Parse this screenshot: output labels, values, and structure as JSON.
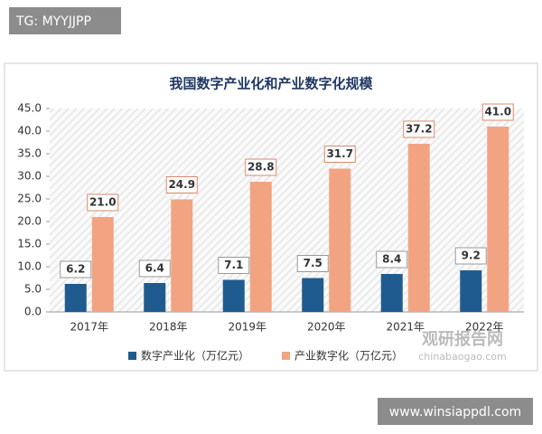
{
  "chart_data": {
    "type": "bar",
    "title": "我国数字产业化和产业数字化规模",
    "categories": [
      "2017年",
      "2018年",
      "2019年",
      "2020年",
      "2021年",
      "2022年"
    ],
    "series": [
      {
        "name": "数字产业化（万亿元）",
        "color": "#1f5b8e",
        "values": [
          6.2,
          6.4,
          7.1,
          7.5,
          8.4,
          9.2
        ],
        "value_labels": [
          "6.2",
          "6.4",
          "7.1",
          "7.5",
          "8.4",
          "9.2"
        ]
      },
      {
        "name": "产业数字化（万亿元）",
        "color": "#f2a482",
        "values": [
          21.0,
          24.9,
          28.8,
          31.7,
          37.2,
          41.0
        ],
        "value_labels": [
          "21.0",
          "24.9",
          "28.8",
          "31.7",
          "37.2",
          "41.0"
        ]
      }
    ],
    "ylim": [
      0,
      45
    ],
    "yticks": [
      {
        "value": 0,
        "label": "0.0"
      },
      {
        "value": 5,
        "label": "5.0"
      },
      {
        "value": 10,
        "label": "10.0"
      },
      {
        "value": 15,
        "label": "15.0"
      },
      {
        "value": 20,
        "label": "20.0"
      },
      {
        "value": 25,
        "label": "25.0"
      },
      {
        "value": 30,
        "label": "30.0"
      },
      {
        "value": 35,
        "label": "35.0"
      },
      {
        "value": 40,
        "label": "40.0"
      },
      {
        "value": 45,
        "label": "45.0"
      }
    ],
    "legend": "bottom"
  },
  "overlays": {
    "top_tag": "TG: MYYJJPP",
    "site": "www.winsiappdl.com",
    "logo": "观研报告网",
    "logo_url": "chinabaogao.com"
  }
}
